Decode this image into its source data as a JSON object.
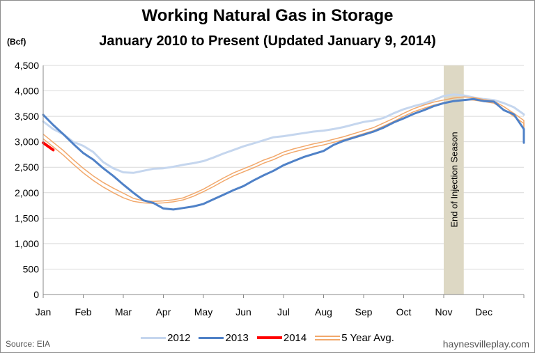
{
  "header": {
    "title": "Working Natural Gas in Storage",
    "subtitle": "January 2010 to Present (Updated January 9, 2014)",
    "unit": "(Bcf)"
  },
  "footer": {
    "source": "Source:  EIA",
    "site": "haynesvilleplay.com"
  },
  "colors": {
    "s2012": "#c5d6ee",
    "s2013": "#4f81c7",
    "s2014": "#ff0000",
    "avg": "#f2a86b",
    "band": "#ddd8c4",
    "grid": "#d9d9d9"
  },
  "chart_data": {
    "type": "line",
    "title": "Working Natural Gas in Storage",
    "subtitle": "January 2010 to Present (Updated January 9, 2014)",
    "ylabel": "(Bcf)",
    "xlabel": "",
    "ylim": [
      0,
      4500
    ],
    "xlim": [
      0,
      12
    ],
    "yticks": [
      0,
      500,
      1000,
      1500,
      2000,
      2500,
      3000,
      3500,
      4000,
      4500
    ],
    "ytick_labels": [
      "0",
      "500",
      "1,000",
      "1,500",
      "2,000",
      "2,500",
      "3,000",
      "3,500",
      "4,000",
      "4,500"
    ],
    "categories": [
      "Jan",
      "Feb",
      "Mar",
      "Apr",
      "May",
      "Jun",
      "Jul",
      "Aug",
      "Sep",
      "Oct",
      "Nov",
      "Dec"
    ],
    "grid": true,
    "legend_position": "bottom",
    "annotation": {
      "text": "End of Injection Season",
      "x_start": 10.0,
      "x_end": 10.5
    },
    "series": [
      {
        "name": "2012",
        "key": "s2012",
        "style": "line",
        "width": 3,
        "points": [
          [
            0,
            3400
          ],
          [
            0.25,
            3250
          ],
          [
            0.5,
            3150
          ],
          [
            0.75,
            3000
          ],
          [
            1,
            2920
          ],
          [
            1.25,
            2800
          ],
          [
            1.5,
            2600
          ],
          [
            1.75,
            2480
          ],
          [
            2,
            2400
          ],
          [
            2.25,
            2390
          ],
          [
            2.5,
            2430
          ],
          [
            2.75,
            2470
          ],
          [
            3,
            2480
          ],
          [
            3.25,
            2510
          ],
          [
            3.5,
            2550
          ],
          [
            3.75,
            2580
          ],
          [
            4,
            2620
          ],
          [
            4.25,
            2690
          ],
          [
            4.5,
            2770
          ],
          [
            4.75,
            2840
          ],
          [
            5,
            2910
          ],
          [
            5.25,
            2970
          ],
          [
            5.5,
            3030
          ],
          [
            5.75,
            3090
          ],
          [
            6,
            3110
          ],
          [
            6.25,
            3140
          ],
          [
            6.5,
            3170
          ],
          [
            6.75,
            3200
          ],
          [
            7,
            3220
          ],
          [
            7.25,
            3250
          ],
          [
            7.5,
            3290
          ],
          [
            7.75,
            3340
          ],
          [
            8,
            3390
          ],
          [
            8.25,
            3420
          ],
          [
            8.5,
            3470
          ],
          [
            8.75,
            3560
          ],
          [
            9,
            3640
          ],
          [
            9.25,
            3700
          ],
          [
            9.5,
            3750
          ],
          [
            9.75,
            3820
          ],
          [
            10,
            3900
          ],
          [
            10.25,
            3930
          ],
          [
            10.5,
            3910
          ],
          [
            10.75,
            3870
          ],
          [
            11,
            3840
          ],
          [
            11.25,
            3820
          ],
          [
            11.5,
            3760
          ],
          [
            11.75,
            3680
          ],
          [
            12,
            3540
          ],
          [
            12.3,
            3530
          ]
        ]
      },
      {
        "name": "2013",
        "key": "s2013",
        "style": "line",
        "width": 3,
        "points": [
          [
            0,
            3530
          ],
          [
            0.25,
            3330
          ],
          [
            0.5,
            3150
          ],
          [
            0.75,
            2960
          ],
          [
            1,
            2780
          ],
          [
            1.25,
            2650
          ],
          [
            1.5,
            2480
          ],
          [
            1.75,
            2330
          ],
          [
            2,
            2160
          ],
          [
            2.25,
            2000
          ],
          [
            2.5,
            1850
          ],
          [
            2.75,
            1800
          ],
          [
            3,
            1690
          ],
          [
            3.25,
            1670
          ],
          [
            3.5,
            1700
          ],
          [
            3.75,
            1730
          ],
          [
            4,
            1780
          ],
          [
            4.25,
            1870
          ],
          [
            4.5,
            1960
          ],
          [
            4.75,
            2050
          ],
          [
            5,
            2130
          ],
          [
            5.25,
            2240
          ],
          [
            5.5,
            2340
          ],
          [
            5.75,
            2430
          ],
          [
            6,
            2540
          ],
          [
            6.25,
            2620
          ],
          [
            6.5,
            2700
          ],
          [
            6.75,
            2760
          ],
          [
            7,
            2820
          ],
          [
            7.25,
            2940
          ],
          [
            7.5,
            3020
          ],
          [
            7.75,
            3080
          ],
          [
            8,
            3140
          ],
          [
            8.25,
            3200
          ],
          [
            8.5,
            3280
          ],
          [
            8.75,
            3380
          ],
          [
            9,
            3460
          ],
          [
            9.25,
            3550
          ],
          [
            9.5,
            3620
          ],
          [
            9.75,
            3700
          ],
          [
            10,
            3760
          ],
          [
            10.25,
            3800
          ],
          [
            10.5,
            3820
          ],
          [
            10.75,
            3840
          ],
          [
            11,
            3800
          ],
          [
            11.25,
            3790
          ],
          [
            11.5,
            3620
          ],
          [
            11.75,
            3540
          ],
          [
            12,
            3250
          ],
          [
            12.25,
            3060
          ],
          [
            12.45,
            2980
          ]
        ]
      },
      {
        "name": "2014",
        "key": "s2014",
        "style": "line",
        "width": 4,
        "points": [
          [
            0,
            2980
          ],
          [
            0.25,
            2840
          ]
        ]
      },
      {
        "name": "5 Year Avg.",
        "key": "avg",
        "style": "band",
        "width": 1.5,
        "upper": [
          [
            0,
            3150
          ],
          [
            0.25,
            2990
          ],
          [
            0.5,
            2830
          ],
          [
            0.75,
            2650
          ],
          [
            1,
            2480
          ],
          [
            1.25,
            2330
          ],
          [
            1.5,
            2200
          ],
          [
            1.75,
            2090
          ],
          [
            2,
            1990
          ],
          [
            2.25,
            1890
          ],
          [
            2.5,
            1840
          ],
          [
            2.75,
            1830
          ],
          [
            3,
            1840
          ],
          [
            3.25,
            1860
          ],
          [
            3.5,
            1900
          ],
          [
            3.75,
            1980
          ],
          [
            4,
            2070
          ],
          [
            4.25,
            2180
          ],
          [
            4.5,
            2290
          ],
          [
            4.75,
            2390
          ],
          [
            5,
            2470
          ],
          [
            5.25,
            2550
          ],
          [
            5.5,
            2640
          ],
          [
            5.75,
            2710
          ],
          [
            6,
            2800
          ],
          [
            6.25,
            2860
          ],
          [
            6.5,
            2910
          ],
          [
            6.75,
            2960
          ],
          [
            7,
            3000
          ],
          [
            7.25,
            3050
          ],
          [
            7.5,
            3100
          ],
          [
            7.75,
            3160
          ],
          [
            8,
            3220
          ],
          [
            8.25,
            3280
          ],
          [
            8.5,
            3370
          ],
          [
            8.75,
            3460
          ],
          [
            9,
            3560
          ],
          [
            9.25,
            3650
          ],
          [
            9.5,
            3720
          ],
          [
            9.75,
            3780
          ],
          [
            10,
            3820
          ],
          [
            10.25,
            3860
          ],
          [
            10.5,
            3880
          ],
          [
            10.75,
            3870
          ],
          [
            11,
            3830
          ],
          [
            11.25,
            3800
          ],
          [
            11.5,
            3690
          ],
          [
            11.75,
            3560
          ],
          [
            12,
            3420
          ],
          [
            12.25,
            3300
          ],
          [
            12.45,
            3270
          ]
        ],
        "lower": [
          [
            0,
            3060
          ],
          [
            0.25,
            2900
          ],
          [
            0.5,
            2740
          ],
          [
            0.75,
            2560
          ],
          [
            1,
            2390
          ],
          [
            1.25,
            2240
          ],
          [
            1.5,
            2110
          ],
          [
            1.75,
            2000
          ],
          [
            2,
            1900
          ],
          [
            2.25,
            1830
          ],
          [
            2.5,
            1800
          ],
          [
            2.75,
            1790
          ],
          [
            3,
            1800
          ],
          [
            3.25,
            1820
          ],
          [
            3.5,
            1860
          ],
          [
            3.75,
            1930
          ],
          [
            4,
            2020
          ],
          [
            4.25,
            2120
          ],
          [
            4.5,
            2230
          ],
          [
            4.75,
            2330
          ],
          [
            5,
            2410
          ],
          [
            5.25,
            2490
          ],
          [
            5.5,
            2580
          ],
          [
            5.75,
            2650
          ],
          [
            6,
            2740
          ],
          [
            6.25,
            2800
          ],
          [
            6.5,
            2850
          ],
          [
            6.75,
            2900
          ],
          [
            7,
            2940
          ],
          [
            7.25,
            2990
          ],
          [
            7.5,
            3040
          ],
          [
            7.75,
            3100
          ],
          [
            8,
            3160
          ],
          [
            8.25,
            3220
          ],
          [
            8.5,
            3310
          ],
          [
            8.75,
            3400
          ],
          [
            9,
            3500
          ],
          [
            9.25,
            3590
          ],
          [
            9.5,
            3660
          ],
          [
            9.75,
            3720
          ],
          [
            10,
            3770
          ],
          [
            10.25,
            3810
          ],
          [
            10.5,
            3830
          ],
          [
            10.75,
            3820
          ],
          [
            11,
            3790
          ],
          [
            11.25,
            3760
          ],
          [
            11.5,
            3640
          ],
          [
            11.75,
            3500
          ],
          [
            12,
            3360
          ],
          [
            12.25,
            3240
          ],
          [
            12.45,
            3210
          ]
        ]
      }
    ]
  }
}
